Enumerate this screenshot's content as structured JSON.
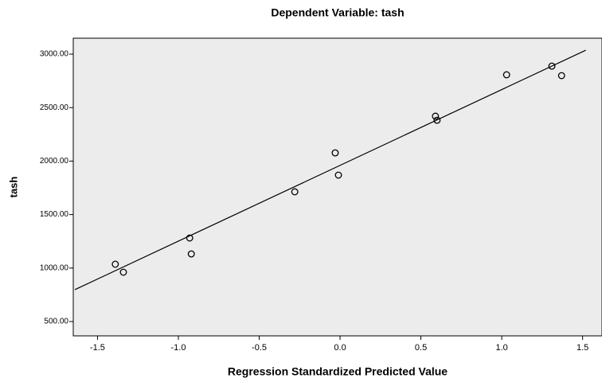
{
  "chart_data": {
    "type": "scatter",
    "title": "Dependent Variable: tash",
    "x_label": "Regression Standardized Predicted Value",
    "y_label": "tash",
    "series": [
      {
        "x": [
          -1.39,
          -1.34,
          -0.93,
          -0.92,
          -0.28,
          -0.03,
          -0.01,
          0.59,
          0.6,
          1.03,
          1.31,
          1.37
        ],
        "values": [
          1036,
          961,
          1281,
          1132,
          1713,
          2077,
          1869,
          2420,
          2382,
          2807,
          2888,
          2799
        ],
        "color": "#000000"
      }
    ],
    "fit_line": {
      "x": [
        -1.64,
        1.52
      ],
      "values": [
        798,
        3037
      ],
      "color": "#000000"
    },
    "xlim": [
      -1.65,
      1.62
    ],
    "ylim": [
      366,
      3149
    ],
    "xticks": [
      -1.5,
      {
        "value": -1,
        "label": "-1.0"
      },
      -0.5,
      {
        "value": 0,
        "label": "0.0"
      },
      0.5,
      {
        "value": 1,
        "label": "1.0"
      },
      1.5
    ],
    "yticks": [
      {
        "value": 500,
        "label": "500.00"
      },
      {
        "value": 1000,
        "label": "1000.00"
      },
      {
        "value": 1500,
        "label": "1500.00"
      },
      {
        "value": 2000,
        "label": "2000.00"
      },
      {
        "value": 2500,
        "label": "2500.00"
      },
      {
        "value": 3000,
        "label": "3000.00"
      }
    ],
    "plot_background": "#ececec"
  }
}
